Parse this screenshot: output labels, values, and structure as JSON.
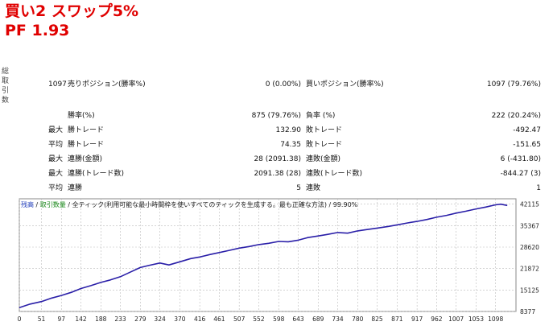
{
  "header": {
    "title_line1": "買い2 スワップ5%",
    "title_line2": "PF    1.93"
  },
  "side_label": [
    "総",
    "取",
    "引",
    "数"
  ],
  "stats": {
    "total_trades": "1097",
    "short_label": "売りポジション(勝率%)",
    "short_value": "0 (0.00%)",
    "long_label": "買いポジション(勝率%)",
    "long_value": "1097 (79.76%)",
    "rows": [
      {
        "prefix": "",
        "l_label": "勝率(%)",
        "l_value": "875 (79.76%)",
        "r_label": "負率 (%)",
        "r_value": "222 (20.24%)"
      },
      {
        "prefix": "最大",
        "l_label": "勝トレード",
        "l_value": "132.90",
        "r_label": "敗トレード",
        "r_value": "-492.47"
      },
      {
        "prefix": "平均",
        "l_label": "勝トレード",
        "l_value": "74.35",
        "r_label": "敗トレード",
        "r_value": "-151.65"
      },
      {
        "prefix": "最大",
        "l_label": "連勝(金額)",
        "l_value": "28 (2091.38)",
        "r_label": "連敗(金額)",
        "r_value": "6 (-431.80)"
      },
      {
        "prefix": "最大",
        "l_label": "連勝(トレード数)",
        "l_value": "2091.38 (28)",
        "r_label": "連敗(トレード数)",
        "r_value": "-844.27 (3)"
      },
      {
        "prefix": "平均",
        "l_label": "連勝",
        "l_value": "5",
        "r_label": "連敗",
        "r_value": "1"
      }
    ]
  },
  "chart_legend": {
    "balance": "残高",
    "sep1": " / ",
    "lot": "取引数量",
    "sep2": " / ",
    "model": "全ティック(利用可能な最小時間枠を使いすべてのティックを生成する。最も正確な方法)",
    "quality": " / 99.90%"
  },
  "chart_data": {
    "type": "line",
    "title": "",
    "xlabel": "",
    "ylabel": "",
    "x_ticks": [
      0,
      51,
      97,
      142,
      188,
      233,
      279,
      324,
      370,
      416,
      461,
      507,
      552,
      598,
      643,
      689,
      734,
      780,
      825,
      871,
      917,
      962,
      1007,
      1053,
      1098
    ],
    "y_ticks": [
      8377,
      15125,
      21872,
      28620,
      35367,
      42115
    ],
    "xlim": [
      0,
      1145
    ],
    "ylim": [
      8377,
      43800
    ],
    "grid": true,
    "series": [
      {
        "name": "",
        "color": "#2a1fa8",
        "x": [
          0,
          25,
          51,
          75,
          97,
          120,
          142,
          165,
          188,
          210,
          233,
          255,
          279,
          300,
          324,
          345,
          370,
          395,
          416,
          440,
          461,
          485,
          507,
          530,
          552,
          575,
          598,
          620,
          643,
          665,
          689,
          710,
          734,
          757,
          780,
          800,
          825,
          850,
          871,
          895,
          917,
          940,
          962,
          985,
          1007,
          1030,
          1053,
          1075,
          1098,
          1110,
          1125
        ],
        "y": [
          9600,
          10700,
          11500,
          12600,
          13400,
          14400,
          15600,
          16500,
          17500,
          18300,
          19300,
          20700,
          22200,
          22900,
          23600,
          23000,
          24000,
          25000,
          25500,
          26300,
          26900,
          27600,
          28300,
          28800,
          29400,
          29800,
          30400,
          30300,
          30800,
          31600,
          32100,
          32600,
          33200,
          33000,
          33700,
          34100,
          34600,
          35100,
          35600,
          36200,
          36700,
          37300,
          38000,
          38600,
          39300,
          39900,
          40600,
          41200,
          41900,
          42100,
          41700
        ]
      }
    ]
  }
}
